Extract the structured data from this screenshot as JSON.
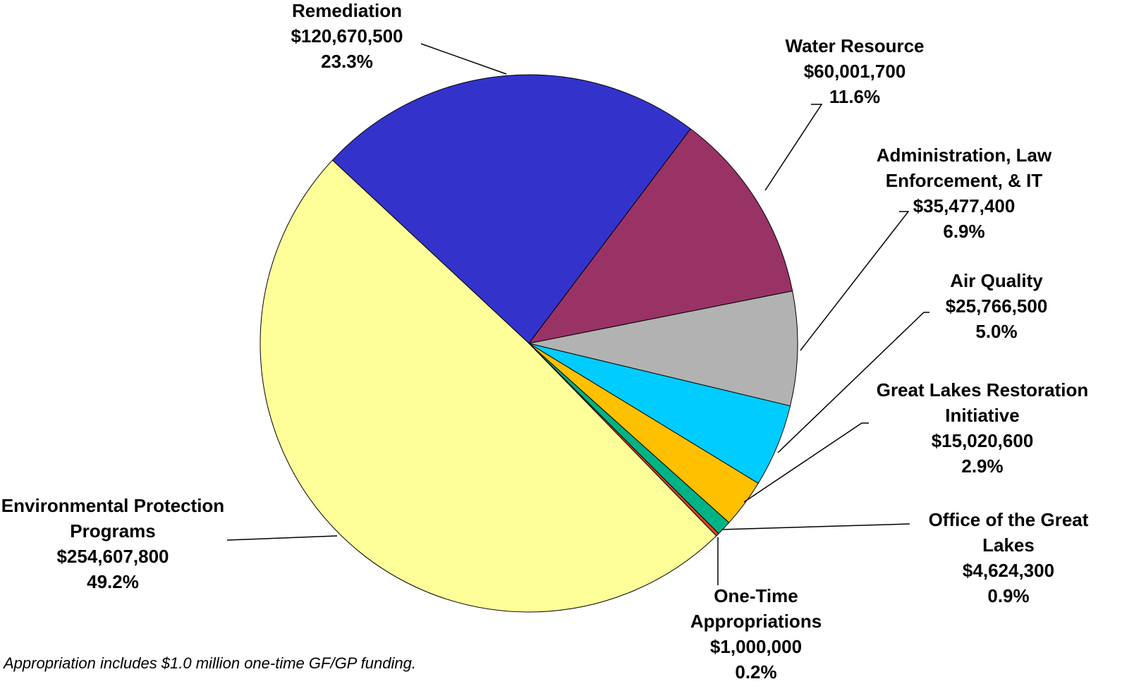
{
  "chart_data": {
    "type": "pie",
    "categories": [
      "Remediation",
      "Water Resource",
      "Administration, Law Enforcement, & IT",
      "Air Quality",
      "Great Lakes Restoration Initiative",
      "Office of the Great Lakes",
      "One-Time Appropriations",
      "Environmental Protection Programs"
    ],
    "values": [
      120670500,
      60001700,
      35477400,
      25766500,
      15020600,
      4624300,
      1000000,
      254607800
    ],
    "value_labels": [
      "$120,670,500",
      "$60,001,700",
      "$35,477,400",
      "$25,766,500",
      "$15,020,600",
      "$4,624,300",
      "$1,000,000",
      "$254,607,800"
    ],
    "percent_labels": [
      "23.3%",
      "11.6%",
      "6.9%",
      "5.0%",
      "2.9%",
      "0.9%",
      "0.2%",
      "49.2%"
    ],
    "colors": [
      "#3333cc",
      "#993366",
      "#b2b2b2",
      "#00ccff",
      "#ffc000",
      "#00b386",
      "#e0401a",
      "#ffff99"
    ],
    "annotation": "Appropriation includes $1.0 million one-time GF/GP funding."
  }
}
